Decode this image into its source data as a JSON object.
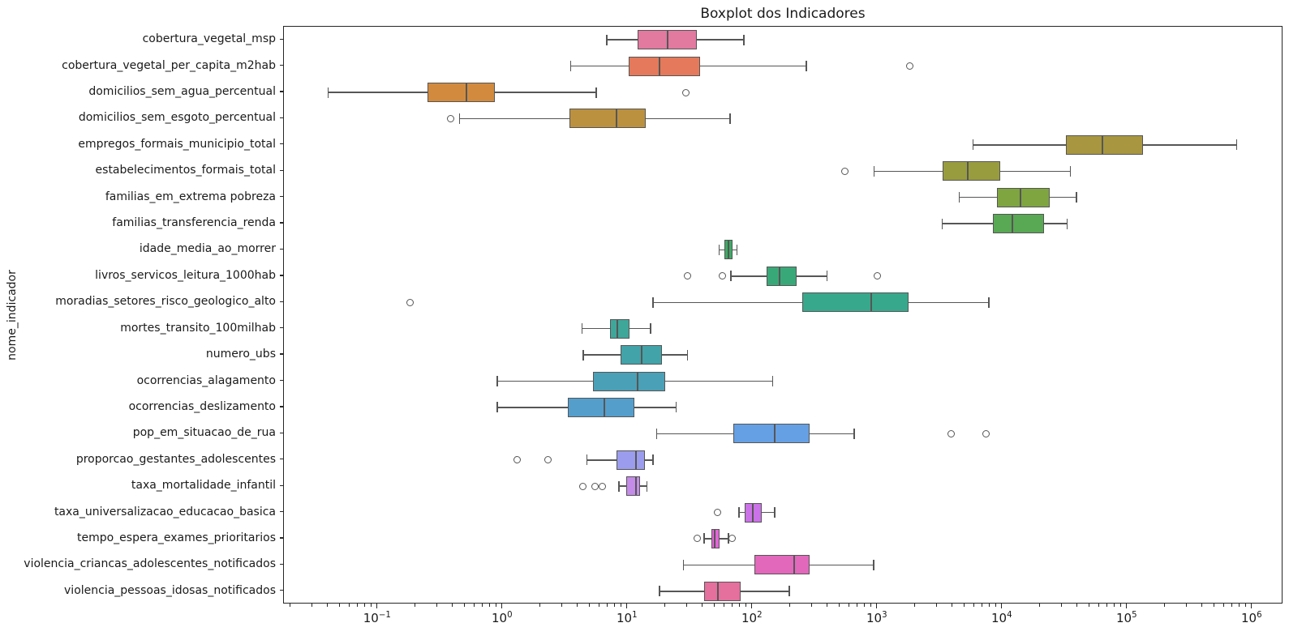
{
  "chart_data": {
    "type": "boxplot",
    "orientation": "horizontal",
    "title": "Boxplot dos Indicadores",
    "xlabel": "",
    "ylabel": "nome_indicador",
    "x_scale": "log",
    "xlim": [
      0.0177,
      1770000
    ],
    "x_major_tick_exponents": [
      -1,
      0,
      1,
      2,
      3,
      4,
      5,
      6
    ],
    "x_tick_labels": [
      "10⁻¹",
      "10⁰",
      "10¹",
      "10²",
      "10³",
      "10⁴",
      "10⁵",
      "10⁶"
    ],
    "grid": false,
    "legend": "none",
    "frame_color": "#262626",
    "element_edge_color": "#565656",
    "rows": [
      {
        "label": "cobertura_vegetal_msp",
        "color": "#e2799f",
        "whisker_low": 6.8,
        "q1": 12,
        "median": 21,
        "q3": 36,
        "whisker_high": 85,
        "outliers": []
      },
      {
        "label": "cobertura_vegetal_per_capita_m2hab",
        "color": "#e4795c",
        "whisker_low": 3.5,
        "q1": 10.2,
        "median": 18,
        "q3": 38,
        "whisker_high": 270,
        "outliers": [
          1800
        ]
      },
      {
        "label": "domicilios_sem_agua_percentual",
        "color": "#d28b3e",
        "whisker_low": 0.04,
        "q1": 0.25,
        "median": 0.51,
        "q3": 0.86,
        "whisker_high": 5.6,
        "outliers": [
          29
        ]
      },
      {
        "label": "domicilios_sem_esgoto_percentual",
        "color": "#bb9140",
        "whisker_low": 0.45,
        "q1": 3.4,
        "median": 8.1,
        "q3": 14,
        "whisker_high": 66,
        "outliers": [
          0.38
        ]
      },
      {
        "label": "empregos_formais_municipio_total",
        "color": "#a89640",
        "whisker_low": 5800,
        "q1": 32000,
        "median": 63000,
        "q3": 133000,
        "whisker_high": 750000,
        "outliers": []
      },
      {
        "label": "estabelecimentos_formais_total",
        "color": "#989c3e",
        "whisker_low": 940,
        "q1": 3300,
        "median": 5300,
        "q3": 9600,
        "whisker_high": 35000,
        "outliers": [
          550
        ]
      },
      {
        "label": "familias_em_extrema pobreza",
        "color": "#7ea540",
        "whisker_low": 4500,
        "q1": 9000,
        "median": 14000,
        "q3": 24000,
        "whisker_high": 39000,
        "outliers": []
      },
      {
        "label": "familias_transferencia_renda",
        "color": "#58a854",
        "whisker_low": 3300,
        "q1": 8400,
        "median": 12000,
        "q3": 21500,
        "whisker_high": 33000,
        "outliers": []
      },
      {
        "label": "idade_media_ao_morrer",
        "color": "#3dab66",
        "whisker_low": 54,
        "q1": 59,
        "median": 64,
        "q3": 69,
        "whisker_high": 75,
        "outliers": []
      },
      {
        "label": "livros_servicos_leitura_1000hab",
        "color": "#39a878",
        "whisker_low": 67,
        "q1": 130,
        "median": 165,
        "q3": 225,
        "whisker_high": 395,
        "outliers": [
          30,
          57,
          1000
        ]
      },
      {
        "label": "moradias_setores_risco_geologico_alto",
        "color": "#38a88c",
        "whisker_low": 16,
        "q1": 250,
        "median": 890,
        "q3": 1770,
        "whisker_high": 7800,
        "outliers": [
          0.18
        ]
      },
      {
        "label": "mortes_transito_100milhab",
        "color": "#3fa69a",
        "whisker_low": 4.3,
        "q1": 7.2,
        "median": 8.2,
        "q3": 10.3,
        "whisker_high": 15.2,
        "outliers": []
      },
      {
        "label": "numero_ubs",
        "color": "#42a3a8",
        "whisker_low": 4.4,
        "q1": 8.8,
        "median": 13,
        "q3": 18.7,
        "whisker_high": 30,
        "outliers": []
      },
      {
        "label": "ocorrencias_alagamento",
        "color": "#4aa0b6",
        "whisker_low": 0.9,
        "q1": 5.3,
        "median": 12,
        "q3": 20,
        "whisker_high": 145,
        "outliers": []
      },
      {
        "label": "ocorrencias_deslizamento",
        "color": "#549ecc",
        "whisker_low": 0.9,
        "q1": 3.3,
        "median": 6.5,
        "q3": 11.3,
        "whisker_high": 24.5,
        "outliers": []
      },
      {
        "label": "pop_em_situacao_de_rua",
        "color": "#66a0e4",
        "whisker_low": 17,
        "q1": 70,
        "median": 150,
        "q3": 285,
        "whisker_high": 650,
        "outliers": [
          3900,
          7400
        ]
      },
      {
        "label": "proporcao_gestantes_adolescentes",
        "color": "#9c9cee",
        "whisker_low": 4.7,
        "q1": 8.1,
        "median": 11.6,
        "q3": 13.7,
        "whisker_high": 16,
        "outliers": [
          1.3,
          2.3
        ]
      },
      {
        "label": "taxa_mortalidade_infantil",
        "color": "#c48ce8",
        "whisker_low": 8.5,
        "q1": 9.7,
        "median": 11.6,
        "q3": 12.5,
        "whisker_high": 14.3,
        "outliers": [
          4.4,
          5.5,
          6.3
        ]
      },
      {
        "label": "taxa_universalizacao_educacao_basica",
        "color": "#cb72e8",
        "whisker_low": 78,
        "q1": 86,
        "median": 100,
        "q3": 118,
        "whisker_high": 150,
        "outliers": [
          52
        ]
      },
      {
        "label": "tempo_espera_exames_prioritarios",
        "color": "#e463d8",
        "whisker_low": 41,
        "q1": 47,
        "median": 50,
        "q3": 54,
        "whisker_high": 64,
        "outliers": [
          36,
          68
        ]
      },
      {
        "label": "violencia_criancas_adolescentes_notificados",
        "color": "#e268bc",
        "whisker_low": 28,
        "q1": 103,
        "median": 215,
        "q3": 285,
        "whisker_high": 930,
        "outliers": []
      },
      {
        "label": "violencia_pessoas_idosas_notificados",
        "color": "#e56f9d",
        "whisker_low": 18,
        "q1": 41,
        "median": 53,
        "q3": 80,
        "whisker_high": 196,
        "outliers": []
      }
    ]
  }
}
